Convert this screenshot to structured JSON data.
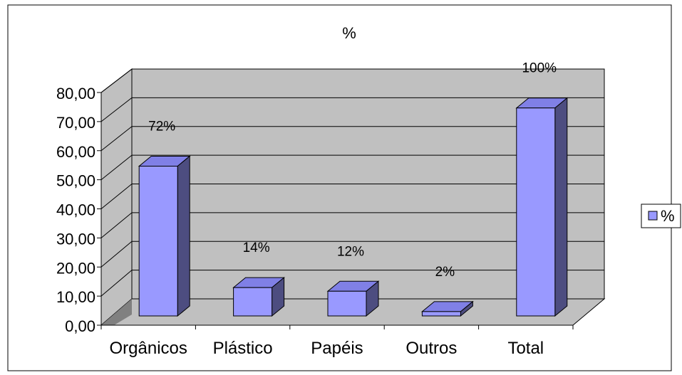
{
  "chart_data": {
    "type": "bar",
    "title": "%",
    "categories": [
      "Orgânicos",
      "Plástico",
      "Papéis",
      "Outros",
      "Total"
    ],
    "series": [
      {
        "name": "%",
        "values": [
          51.5,
          9.75,
          8.5,
          1.5,
          71.5
        ]
      }
    ],
    "data_labels": [
      "72%",
      "14%",
      "12%",
      "2%",
      "100%"
    ],
    "y_ticks": [
      "0,00",
      "10,00",
      "20,00",
      "30,00",
      "40,00",
      "50,00",
      "60,00",
      "70,00",
      "80,00"
    ],
    "ylim": [
      0,
      80
    ],
    "grid": true,
    "legend_position": "right",
    "colors": {
      "bar_front": "#9999ff",
      "bar_side": "#4d4d80",
      "bar_top": "#8080e6",
      "wall": "#c0c0c0",
      "floor": "#c0c0c0",
      "floor_side": "#808080"
    }
  }
}
